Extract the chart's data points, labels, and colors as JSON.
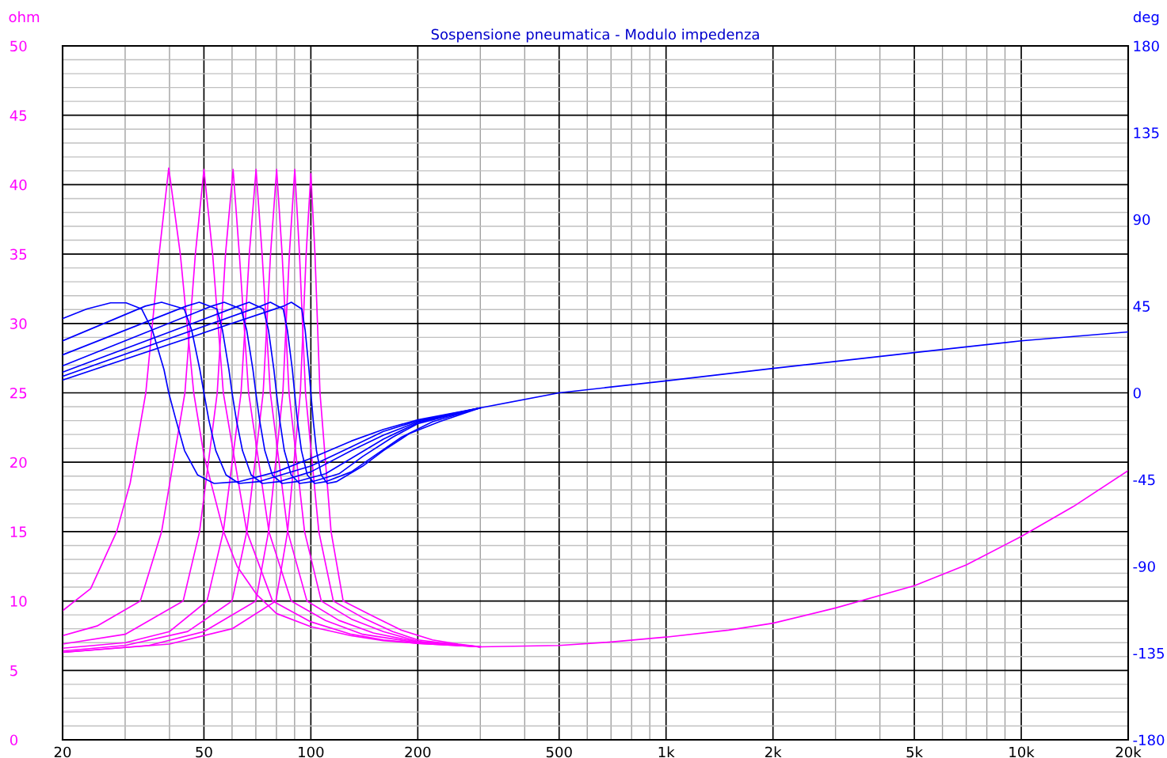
{
  "chart_data": {
    "type": "line",
    "title": "Sospensione pneumatica - Modulo impedenza",
    "ylabel": "ohm",
    "y2label": "deg",
    "log": "x",
    "grid": true,
    "xlim": [
      20,
      20000
    ],
    "ylim": [
      0,
      50
    ],
    "y2lim": [
      -180,
      180
    ],
    "xticks": [
      20,
      {
        "value": 30,
        "label": null
      },
      {
        "value": 40,
        "label": null
      },
      50,
      {
        "value": 60,
        "label": null
      },
      {
        "value": 70,
        "label": null
      },
      {
        "value": 80,
        "label": null
      },
      {
        "value": 90,
        "label": null
      },
      100,
      200,
      {
        "value": 300,
        "label": null
      },
      {
        "value": 400,
        "label": null
      },
      500,
      {
        "value": 600,
        "label": null
      },
      {
        "value": 700,
        "label": null
      },
      {
        "value": 800,
        "label": null
      },
      {
        "value": 900,
        "label": null
      },
      {
        "value": 1000,
        "label": "1k"
      },
      {
        "value": 2000,
        "label": "2k"
      },
      {
        "value": 3000,
        "label": null
      },
      {
        "value": 4000,
        "label": null
      },
      {
        "value": 5000,
        "label": "5k"
      },
      {
        "value": 6000,
        "label": null
      },
      {
        "value": 7000,
        "label": null
      },
      {
        "value": 8000,
        "label": null
      },
      {
        "value": 9000,
        "label": null
      },
      {
        "value": 10000,
        "label": "10k"
      },
      {
        "value": 20000,
        "label": "20k"
      }
    ],
    "yticks": [
      0,
      {
        "value": 1,
        "label": null
      },
      {
        "value": 2,
        "label": null
      },
      {
        "value": 3,
        "label": null
      },
      {
        "value": 4,
        "label": null
      },
      5,
      {
        "value": 6,
        "label": null
      },
      {
        "value": 7,
        "label": null
      },
      {
        "value": 8,
        "label": null
      },
      {
        "value": 9,
        "label": null
      },
      10,
      {
        "value": 11,
        "label": null
      },
      {
        "value": 12,
        "label": null
      },
      {
        "value": 13,
        "label": null
      },
      {
        "value": 14,
        "label": null
      },
      15,
      {
        "value": 16,
        "label": null
      },
      {
        "value": 17,
        "label": null
      },
      {
        "value": 18,
        "label": null
      },
      {
        "value": 19,
        "label": null
      },
      20,
      {
        "value": 21,
        "label": null
      },
      {
        "value": 22,
        "label": null
      },
      {
        "value": 23,
        "label": null
      },
      {
        "value": 24,
        "label": null
      },
      25,
      {
        "value": 26,
        "label": null
      },
      {
        "value": 27,
        "label": null
      },
      {
        "value": 28,
        "label": null
      },
      {
        "value": 29,
        "label": null
      },
      30,
      {
        "value": 31,
        "label": null
      },
      {
        "value": 32,
        "label": null
      },
      {
        "value": 33,
        "label": null
      },
      {
        "value": 34,
        "label": null
      },
      35,
      {
        "value": 36,
        "label": null
      },
      {
        "value": 37,
        "label": null
      },
      {
        "value": 38,
        "label": null
      },
      {
        "value": 39,
        "label": null
      },
      40,
      {
        "value": 41,
        "label": null
      },
      {
        "value": 42,
        "label": null
      },
      {
        "value": 43,
        "label": null
      },
      {
        "value": 44,
        "label": null
      },
      45,
      {
        "value": 46,
        "label": null
      },
      {
        "value": 47,
        "label": null
      },
      {
        "value": 48,
        "label": null
      },
      {
        "value": 49,
        "label": null
      },
      50
    ],
    "y2ticks": [
      -180,
      -135,
      -90,
      -45,
      0,
      45,
      90,
      135,
      180
    ],
    "series": [
      {
        "color": "#ff00ff",
        "x": [
          20,
          24,
          28.4,
          31,
          34.3,
          37.4,
          39.8,
          42.9,
          46.8,
          50,
          56.8,
          62,
          70.2,
          80,
          100,
          130,
          160,
          200,
          300,
          500,
          700,
          1000,
          1500,
          2000,
          3000,
          5000,
          7000,
          10000,
          14000,
          20000
        ],
        "values": [
          9.3,
          10.9,
          15,
          18.5,
          25,
          35,
          41.2,
          35,
          25,
          20.5,
          15,
          12.5,
          10.5,
          9.1,
          8.15,
          7.5,
          7.15,
          6.95,
          6.7,
          6.8,
          7.05,
          7.4,
          7.9,
          8.4,
          9.5,
          11.1,
          12.6,
          14.65,
          16.8,
          19.4
        ]
      },
      {
        "color": "#ff00ff",
        "x": [
          20,
          25,
          33.1,
          38,
          44.2,
          47.3,
          50,
          52.9,
          56.7,
          66,
          78,
          100,
          130,
          160,
          200,
          300
        ],
        "values": [
          7.5,
          8.2,
          10,
          15,
          25,
          35,
          41.1,
          35,
          25,
          15,
          10,
          8.5,
          7.6,
          7.2,
          6.95,
          6.7
        ]
      },
      {
        "color": "#ff00ff",
        "x": [
          20,
          30,
          43.7,
          48.6,
          54.5,
          57.5,
          60.4,
          62.9,
          66.8,
          76.2,
          88,
          110,
          140,
          200,
          300
        ],
        "values": [
          6.9,
          7.6,
          10,
          15,
          25,
          35,
          41.1,
          35,
          25,
          15,
          10,
          8.6,
          7.6,
          7.0,
          6.7
        ]
      },
      {
        "color": "#ff00ff",
        "x": [
          20,
          30,
          40,
          51,
          56.7,
          63.6,
          67.1,
          70.1,
          72.9,
          76.9,
          86.1,
          97.5,
          120,
          150,
          200,
          300
        ],
        "values": [
          6.6,
          7.0,
          7.8,
          10,
          15,
          25,
          35,
          41.1,
          35,
          25,
          15,
          10,
          8.6,
          7.7,
          7.05,
          6.7
        ]
      },
      {
        "color": "#ff00ff",
        "x": [
          20,
          30,
          45,
          60,
          66,
          73.4,
          77,
          80.1,
          83,
          86.8,
          96,
          107,
          130,
          160,
          200,
          300
        ],
        "values": [
          6.4,
          6.8,
          7.8,
          10,
          15,
          25,
          35,
          41.1,
          35,
          25,
          15,
          10,
          8.7,
          7.8,
          7.1,
          6.7
        ]
      },
      {
        "color": "#ff00ff",
        "x": [
          20,
          35,
          50,
          70,
          76,
          83.4,
          87,
          90.1,
          92.9,
          96.6,
          105.3,
          115.7,
          140,
          170,
          200,
          250,
          300
        ],
        "values": [
          6.3,
          6.8,
          7.8,
          10,
          15,
          25,
          35,
          41.1,
          35,
          25,
          15,
          10,
          8.8,
          7.8,
          7.2,
          6.9,
          6.7
        ]
      },
      {
        "color": "#ff00ff",
        "x": [
          20,
          40,
          60,
          79.7,
          86,
          93.4,
          97,
          100,
          102.7,
          106.1,
          114,
          123.3,
          150,
          180,
          220,
          260,
          300
        ],
        "values": [
          6.3,
          6.9,
          8.0,
          10,
          15,
          25,
          35,
          40.8,
          35,
          25,
          15,
          10,
          8.9,
          7.9,
          7.2,
          6.9,
          6.7
        ]
      },
      {
        "color": "#0000ff",
        "axis": "y2",
        "x": [
          20,
          23.4,
          27.3,
          30.2,
          33.4,
          35.8,
          38.6,
          39.8,
          41.7,
          44.1,
          48,
          53.4,
          63.1,
          80,
          100,
          130,
          160,
          200,
          300,
          500,
          1000,
          2000,
          5000,
          10000,
          20000
        ],
        "values": [
          38.5,
          43.5,
          46.7,
          46.7,
          43.5,
          32.4,
          12,
          0,
          -14,
          -30,
          -42.6,
          -47,
          -46,
          -41,
          -34,
          -25,
          -19,
          -14,
          -7.8,
          0,
          6.2,
          12.7,
          20.9,
          27,
          31.6
        ]
      },
      {
        "color": "#0000ff",
        "axis": "y2",
        "x": [
          20,
          34.2,
          38,
          44,
          46.2,
          48.7,
          50,
          51.6,
          54,
          57.7,
          62.8,
          71.6,
          100,
          130,
          160,
          200,
          300
        ],
        "values": [
          27,
          45,
          47,
          43.5,
          32.4,
          12,
          0,
          -14,
          -30,
          -42.6,
          -47,
          -46,
          -38,
          -28,
          -20,
          -14.5,
          -7.8
        ]
      },
      {
        "color": "#0000ff",
        "axis": "y2",
        "x": [
          20,
          44.6,
          48.5,
          54.4,
          56.4,
          58.8,
          60,
          61.7,
          64.2,
          67.9,
          73,
          81.7,
          100,
          130,
          160,
          200,
          300
        ],
        "values": [
          19.7,
          45,
          47,
          43.5,
          32.4,
          12,
          0,
          -14,
          -30,
          -42.6,
          -47,
          -46,
          -41,
          -30,
          -22,
          -15,
          -7.8
        ]
      },
      {
        "color": "#0000ff",
        "axis": "y2",
        "x": [
          20,
          52.6,
          57,
          63.6,
          66,
          68.7,
          70,
          71.7,
          74.2,
          77.9,
          83,
          91.5,
          110,
          130,
          160,
          200,
          300
        ],
        "values": [
          14,
          45,
          47,
          43.5,
          32.4,
          12,
          0,
          -14,
          -30,
          -42.6,
          -47,
          -46,
          -42,
          -34,
          -24,
          -15.5,
          -7.8
        ]
      },
      {
        "color": "#0000ff",
        "axis": "y2",
        "x": [
          20,
          62.5,
          67,
          73.6,
          76,
          78.7,
          80,
          81.7,
          84.2,
          88,
          92.9,
          101.4,
          120,
          140,
          170,
          200,
          300
        ],
        "values": [
          10.7,
          45,
          47,
          43.5,
          32.4,
          12,
          0,
          -14,
          -30,
          -42.6,
          -47,
          -46,
          -42,
          -33,
          -23,
          -16,
          -7.8
        ]
      },
      {
        "color": "#0000ff",
        "axis": "y2",
        "x": [
          20,
          72.3,
          76.9,
          83.6,
          85.9,
          88.7,
          90,
          91.6,
          94.1,
          97.7,
          102.5,
          110.5,
          130,
          150,
          180,
          220,
          300
        ],
        "values": [
          8.6,
          45,
          47,
          43.5,
          32.4,
          12,
          0,
          -14,
          -30,
          -42.6,
          -47,
          -46,
          -41,
          -33,
          -23,
          -15,
          -7.8
        ]
      },
      {
        "color": "#0000ff",
        "axis": "y2",
        "x": [
          20,
          83.8,
          88.1,
          94.3,
          96.4,
          98.8,
          100,
          101.5,
          103.7,
          106.9,
          111.3,
          118.3,
          140,
          160,
          190,
          230,
          300
        ],
        "values": [
          6.6,
          45,
          47,
          43.5,
          32.4,
          12,
          0,
          -14,
          -30,
          -42.6,
          -47,
          -46,
          -38,
          -30,
          -21,
          -15,
          -7.8
        ]
      }
    ]
  }
}
